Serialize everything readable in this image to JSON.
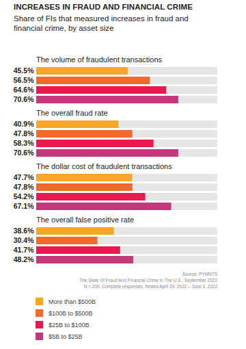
{
  "chart_data": {
    "type": "bar",
    "orientation": "horizontal",
    "title": "INCREASES IN FRAUD AND FINANCIAL CRIME",
    "subtitle": "Share of FIs that measured increases in fraud and financial crime, by asset size",
    "categories": [
      "The volume of fraudulent transactions",
      "The overall fraud rate",
      "The dollar cost of fraudulent transactions",
      "The overall false positive rate"
    ],
    "series": [
      {
        "name": "More than $500B",
        "color": "#f8a629",
        "values": [
          45.5,
          40.9,
          47.7,
          38.6
        ],
        "value_labels": [
          "45.5%",
          "40.9%",
          "47.7%",
          "38.6%"
        ]
      },
      {
        "name": "$100B to $500B",
        "color": "#f26a2b",
        "values": [
          56.5,
          47.8,
          47.8,
          30.4
        ],
        "value_labels": [
          "56.5%",
          "47.8%",
          "47.8%",
          "30.4%"
        ]
      },
      {
        "name": "$25B to $100B",
        "color": "#e8194f",
        "values": [
          64.6,
          58.3,
          54.2,
          41.7
        ],
        "value_labels": [
          "64.6%",
          "58.3%",
          "54.2%",
          "41.7%"
        ]
      },
      {
        "name": "$5B to $25B",
        "color": "#c2387a",
        "values": [
          70.6,
          70.6,
          67.1,
          48.2
        ],
        "value_labels": [
          "70.6%",
          "70.6%",
          "67.1%",
          "48.2%"
        ]
      }
    ],
    "xlim": [
      0,
      90
    ],
    "data_labels": true,
    "tick_labels": false,
    "legend": "bottom",
    "annotations": [
      "Source: PYMNTS",
      "The State Of Fraud And Financial Crime In The U.S.: September 2022",
      "N = 200: Complete responses, fielded April 29, 2022 – June 3, 2022"
    ]
  }
}
